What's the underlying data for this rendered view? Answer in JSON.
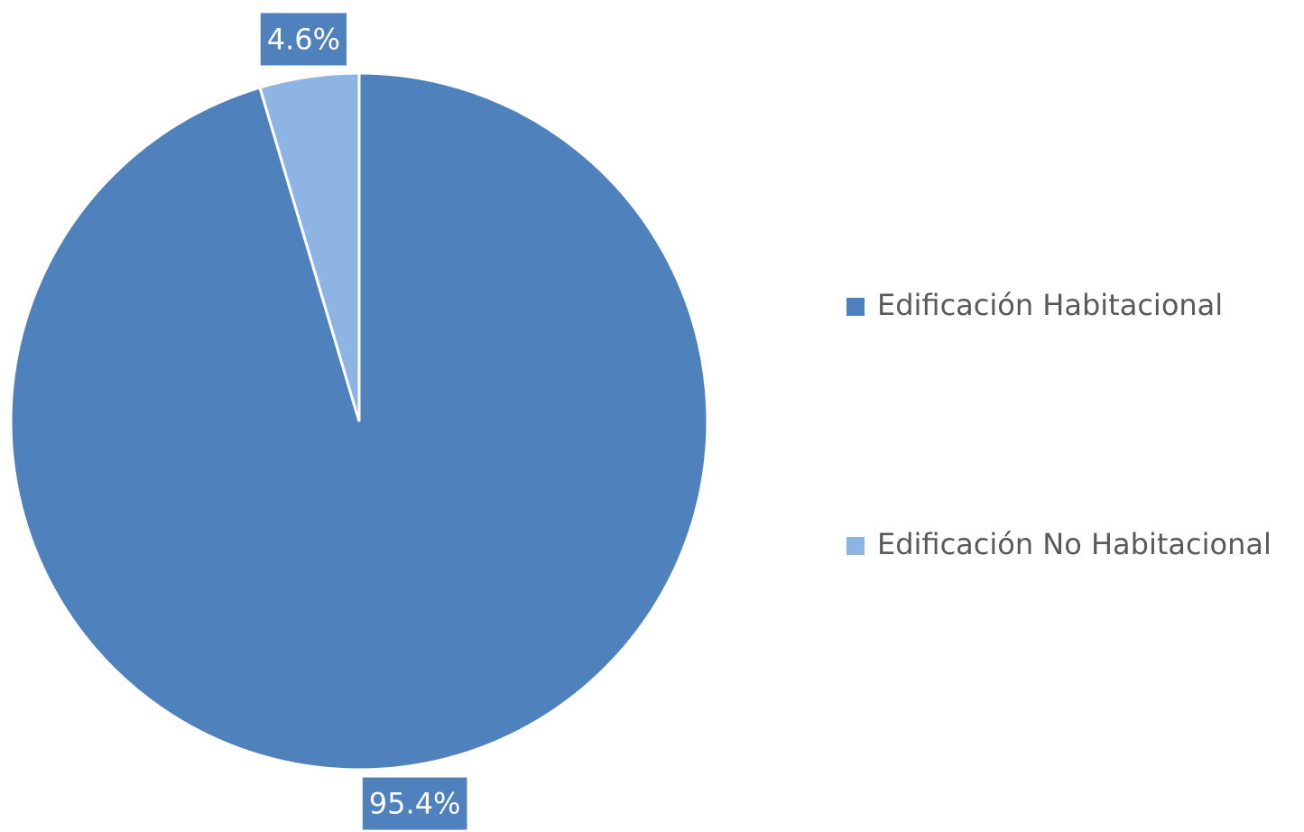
{
  "chart_data": {
    "type": "pie",
    "categories": [
      "Edificación Habitacional",
      "Edificación No Habitacional"
    ],
    "values": [
      95.4,
      4.6
    ],
    "value_labels": [
      "95.4%",
      "4.6%"
    ],
    "colors": [
      "#4f81bd",
      "#8eb4e3"
    ],
    "legend": "right"
  }
}
